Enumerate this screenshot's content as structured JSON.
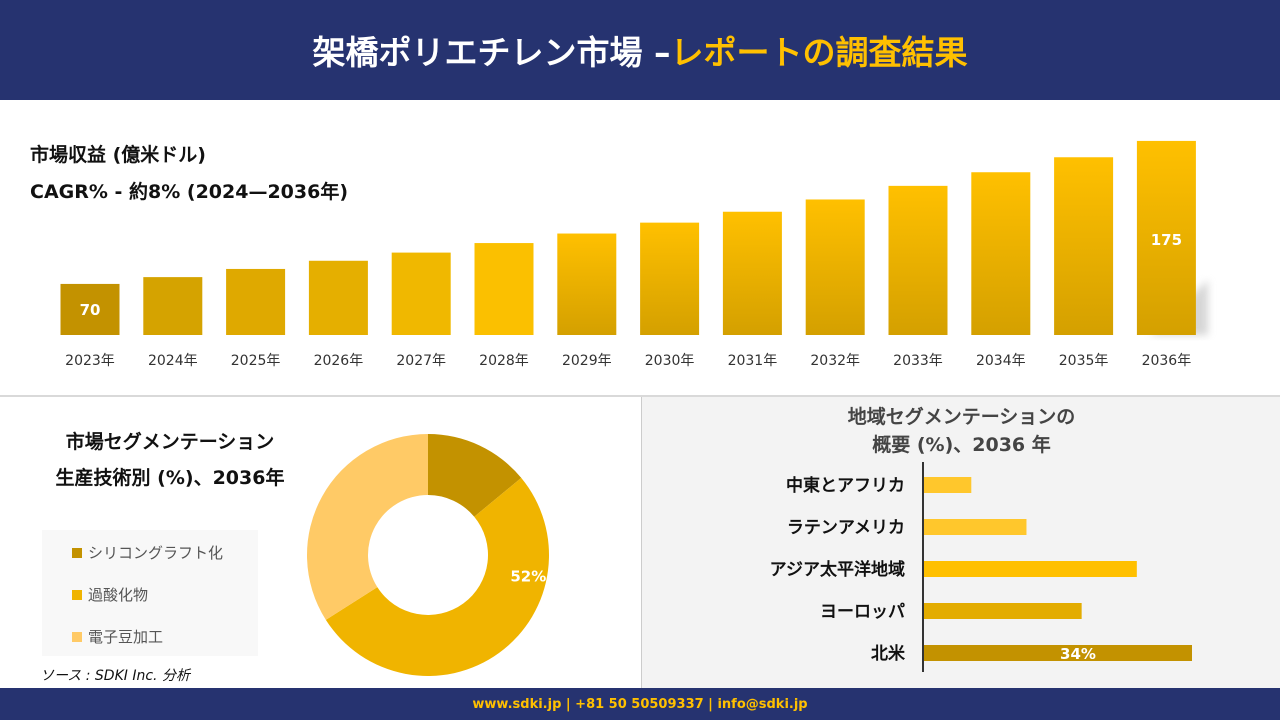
{
  "header": {
    "title_white": "架橋ポリエチレン市場 –",
    "title_yellow": "レポートの調査結果"
  },
  "revenue": {
    "title": "市場収益 (億米ドル)",
    "cagr": "CAGR% - 約8% (2024—2036年)"
  },
  "chart_data": [
    {
      "type": "bar",
      "title": "市場収益 (億米ドル)",
      "subtitle": "CAGR% - 約8% (2024—2036年)",
      "categories": [
        "2023年",
        "2024年",
        "2025年",
        "2026年",
        "2027年",
        "2028年",
        "2029年",
        "2030年",
        "2031年",
        "2032年",
        "2033年",
        "2034年",
        "2035年",
        "2036年"
      ],
      "values": [
        70,
        75,
        81,
        87,
        93,
        100,
        107,
        115,
        123,
        132,
        142,
        152,
        163,
        175
      ],
      "data_labels": {
        "0": "70",
        "13": "175"
      },
      "colors": [
        "#C39200",
        "#D5A300",
        "#DFA900",
        "#E5AF00",
        "#F0B800",
        "#FBC000",
        "#FFC000",
        "#FFC000",
        "#FFC000",
        "#FFC000",
        "#FFC000",
        "#FFC000",
        "#FFC000",
        "#FFC000"
      ],
      "grid": false
    },
    {
      "type": "pie",
      "title": "市場セグメンテーション 生産技術別 (%)、2036年",
      "categories": [
        "シリコングラフト化",
        "過酸化物",
        "電子豆加工"
      ],
      "values": [
        14,
        52,
        34
      ],
      "data_labels": {
        "1": "52%"
      },
      "colors": [
        "#C39200",
        "#F0B400",
        "#FFCA66"
      ],
      "legend": "left"
    },
    {
      "type": "bar",
      "orientation": "horizontal",
      "title": "地域セグメンテーションの 概要 (%)、2036 年",
      "categories": [
        "中東とアフリカ",
        "ラテンアメリカ",
        "アジア太平洋地域",
        "ヨーロッパ",
        "北米"
      ],
      "values": [
        6,
        13,
        27,
        20,
        34
      ],
      "data_labels": {
        "4": "34%"
      },
      "colors": [
        "#FFC72C",
        "#FFC72C",
        "#FFC000",
        "#E3AC00",
        "#C39200"
      ]
    }
  ],
  "donut": {
    "title_line1": "市場セグメンテーション",
    "title_line2": "生産技術別 (%)、2036年"
  },
  "region": {
    "title_line1": "地域セグメンテーションの",
    "title_line2": "概要 (%)、2036 年"
  },
  "source": "ソース : SDKI Inc. 分析",
  "footer": "www.sdki.jp | +81 50 50509337 | info@sdki.jp"
}
